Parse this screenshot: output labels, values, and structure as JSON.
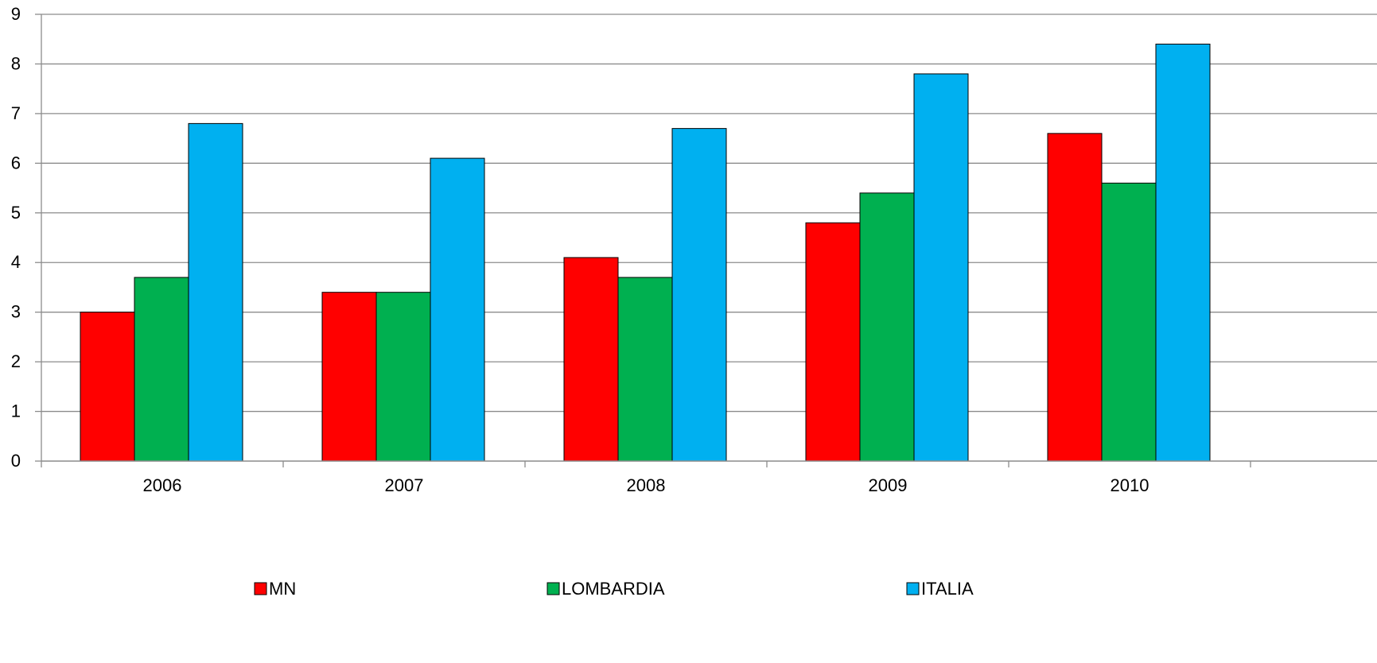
{
  "chart_data": {
    "type": "bar",
    "categories": [
      "2006",
      "2007",
      "2008",
      "2009",
      "2010"
    ],
    "series": [
      {
        "name": "MN",
        "color": "#ff0000",
        "values": [
          3.0,
          3.4,
          4.1,
          4.8,
          6.6
        ]
      },
      {
        "name": "LOMBARDIA",
        "color": "#00b050",
        "values": [
          3.7,
          3.4,
          3.7,
          5.4,
          5.6
        ]
      },
      {
        "name": "ITALIA",
        "color": "#00b0f0",
        "values": [
          6.8,
          6.1,
          6.7,
          7.8,
          8.4
        ]
      }
    ],
    "title": "",
    "xlabel": "",
    "ylabel": "",
    "ylim": [
      0,
      9
    ],
    "yticks": [
      "0",
      "1",
      "2",
      "3",
      "4",
      "5",
      "6",
      "7",
      "8",
      "9"
    ],
    "grid": true,
    "legend_position": "bottom"
  }
}
